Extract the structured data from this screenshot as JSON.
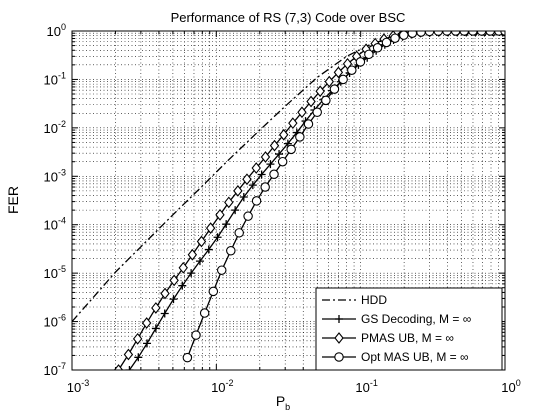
{
  "chart_data": {
    "type": "line",
    "title": "Performance of RS (7,3) Code over BSC",
    "xlabel": "P",
    "xlabel_sub": "b",
    "ylabel": "FER",
    "x_scale": "log",
    "y_scale": "log",
    "xlim": [
      0.001,
      1
    ],
    "ylim": [
      1e-07,
      1
    ],
    "x_tick_exponents": [
      "-3",
      "-2",
      "-1",
      "0"
    ],
    "y_tick_exponents": [
      "0",
      "-1",
      "-2",
      "-3",
      "-4",
      "-5",
      "-6",
      "-7"
    ],
    "tick_base": "10",
    "grid": true,
    "legend_position": "bottom-right",
    "series": [
      {
        "name": "HDD",
        "line_style": "dashdot",
        "marker": "none",
        "color": "#000000",
        "x": [
          0.001,
          0.002,
          0.003,
          0.005,
          0.008,
          0.012,
          0.02,
          0.03,
          0.05,
          0.08,
          0.12,
          0.18,
          0.25,
          0.35,
          0.5,
          0.7,
          1.0
        ],
        "y": [
          1e-06,
          1.05e-05,
          3.5e-05,
          0.00016,
          0.00063,
          0.0021,
          0.009,
          0.028,
          0.11,
          0.3,
          0.55,
          0.78,
          0.93,
          0.985,
          1.0,
          1.0,
          1.0
        ]
      },
      {
        "name": "GS Decoding, M = ∞",
        "line_style": "solid",
        "marker": "plus",
        "color": "#000000",
        "x": [
          0.0025,
          0.00288,
          0.00331,
          0.00381,
          0.00439,
          0.00505,
          0.00581,
          0.00669,
          0.0077,
          0.00886,
          0.0102,
          0.0117,
          0.0135,
          0.0155,
          0.0179,
          0.0206,
          0.0237,
          0.0272,
          0.0313,
          0.0361,
          0.0415,
          0.0478,
          0.055,
          0.0633,
          0.0728,
          0.0838,
          0.0965,
          0.111,
          0.128,
          0.147,
          0.169,
          0.195,
          0.224,
          0.258,
          0.297,
          0.342,
          0.393,
          0.453,
          0.521,
          0.6,
          0.69,
          0.795,
          0.915,
          1.0
        ],
        "y": [
          1e-07,
          1.83e-07,
          3.55e-07,
          7.24e-07,
          1.47e-06,
          2.91e-06,
          5.51e-06,
          1e-05,
          1.77e-05,
          3.07e-05,
          5.51e-05,
          0.000103,
          0.0002,
          0.000374,
          0.000657,
          0.00109,
          0.00178,
          0.00288,
          0.00473,
          0.008,
          0.0138,
          0.0234,
          0.038,
          0.0587,
          0.0895,
          0.136,
          0.2,
          0.28,
          0.39,
          0.52,
          0.65,
          0.76,
          0.85,
          0.91,
          0.95,
          0.975,
          0.99,
          0.998,
          1.0,
          1.0,
          1.0,
          1.0,
          1.0,
          1.0
        ]
      },
      {
        "name": "PMAS UB, M = ∞",
        "line_style": "solid",
        "marker": "diamond",
        "color": "#000000",
        "x": [
          0.0021,
          0.00246,
          0.00285,
          0.00329,
          0.00381,
          0.00441,
          0.0051,
          0.0059,
          0.00682,
          0.00789,
          0.00913,
          0.0106,
          0.0122,
          0.0141,
          0.0163,
          0.0189,
          0.0219,
          0.0253,
          0.0293,
          0.0339,
          0.0392,
          0.0453,
          0.0524,
          0.0606,
          0.0701,
          0.0811,
          0.0938,
          0.109,
          0.126,
          0.145,
          0.168,
          0.195,
          0.225,
          0.26,
          0.301,
          0.348,
          0.403,
          0.466,
          0.539,
          0.624,
          0.721,
          0.834,
          0.965
        ],
        "y": [
          1e-07,
          2.09e-07,
          4.4e-07,
          9.33e-07,
          1.91e-06,
          3.8e-06,
          7.08e-06,
          1.29e-05,
          2.4e-05,
          4.5e-05,
          8.5e-05,
          0.00016,
          0.00029,
          0.0005,
          0.00087,
          0.00148,
          0.0025,
          0.0043,
          0.0072,
          0.0125,
          0.021,
          0.035,
          0.057,
          0.09,
          0.14,
          0.21,
          0.3,
          0.42,
          0.55,
          0.68,
          0.79,
          0.87,
          0.93,
          0.965,
          0.985,
          0.995,
          1.0,
          1.0,
          1.0,
          1.0,
          1.0,
          1.0,
          1.0
        ]
      },
      {
        "name": "Opt MAS UB, M = ∞",
        "line_style": "solid",
        "marker": "circle",
        "color": "#000000",
        "x": [
          0.0063,
          0.00723,
          0.0083,
          0.00953,
          0.0109,
          0.0126,
          0.0144,
          0.0166,
          0.019,
          0.0218,
          0.0251,
          0.0288,
          0.033,
          0.0379,
          0.0435,
          0.05,
          0.0574,
          0.0658,
          0.0756,
          0.0868,
          0.0996,
          0.114,
          0.131,
          0.151,
          0.173,
          0.199,
          0.228,
          0.262,
          0.3,
          0.345,
          0.396,
          0.455,
          0.522,
          0.599,
          0.688,
          0.79,
          0.907,
          1.0
        ],
        "y": [
          1.8e-07,
          5.25e-07,
          1.5e-06,
          4.2e-06,
          1.15e-05,
          2.9e-05,
          6.8e-05,
          0.00015,
          0.00031,
          0.0006,
          0.0011,
          0.002,
          0.0036,
          0.0065,
          0.012,
          0.021,
          0.037,
          0.063,
          0.1,
          0.155,
          0.23,
          0.33,
          0.45,
          0.58,
          0.71,
          0.82,
          0.9,
          0.95,
          0.98,
          0.993,
          1.0,
          1.0,
          1.0,
          1.0,
          1.0,
          1.0,
          1.0,
          1.0
        ]
      }
    ]
  }
}
